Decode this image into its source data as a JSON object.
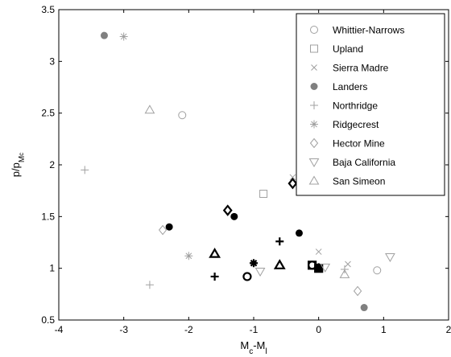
{
  "chart_data": {
    "type": "scatter",
    "xlabel": "M_c-M_l",
    "ylabel": "p/p_Mc",
    "xlim": [
      -4,
      2
    ],
    "ylim": [
      0.5,
      3.5
    ],
    "xticks": [
      -4,
      -3,
      -2,
      -1,
      0,
      1,
      2
    ],
    "yticks": [
      0.5,
      1,
      1.5,
      2,
      2.5,
      3,
      3.5
    ],
    "grid": false,
    "legend_position": "top-right",
    "series": [
      {
        "name": "Whittier-Narrows",
        "marker": "circle",
        "color": "#a0a0a0",
        "points": [
          [
            -2.1,
            2.48
          ],
          [
            -1.1,
            0.92
          ],
          [
            -0.1,
            1.03
          ],
          [
            0.9,
            0.98
          ]
        ],
        "bold": [
          false,
          true,
          true,
          false
        ]
      },
      {
        "name": "Upland",
        "marker": "square",
        "color": "#a0a0a0",
        "points": [
          [
            -0.85,
            1.72
          ],
          [
            -0.1,
            1.03
          ],
          [
            0.0,
            1.0
          ]
        ],
        "bold": [
          false,
          true,
          true
        ]
      },
      {
        "name": "Sierra Madre",
        "marker": "x",
        "color": "#a0a0a0",
        "points": [
          [
            -0.4,
            1.88
          ],
          [
            0.0,
            1.16
          ],
          [
            0.45,
            1.04
          ],
          [
            0.0,
            0.99
          ]
        ],
        "bold": [
          false,
          false,
          false,
          true
        ]
      },
      {
        "name": "Landers",
        "marker": "filled-circle",
        "color": "#808080",
        "points": [
          [
            -3.3,
            3.25
          ],
          [
            -2.3,
            1.4
          ],
          [
            -1.3,
            1.5
          ],
          [
            -0.3,
            1.34
          ],
          [
            0.0,
            1.0
          ],
          [
            0.7,
            0.62
          ]
        ],
        "bold": [
          false,
          true,
          true,
          true,
          true,
          false
        ]
      },
      {
        "name": "Northridge",
        "marker": "plus",
        "color": "#a0a0a0",
        "points": [
          [
            -3.6,
            1.95
          ],
          [
            -2.6,
            0.84
          ],
          [
            -1.6,
            0.92
          ],
          [
            -0.6,
            1.26
          ],
          [
            0.0,
            1.01
          ],
          [
            0.4,
            0.99
          ]
        ],
        "bold": [
          false,
          false,
          true,
          true,
          true,
          false
        ]
      },
      {
        "name": "Ridgecrest",
        "marker": "asterisk",
        "color": "#a0a0a0",
        "points": [
          [
            -3.0,
            3.24
          ],
          [
            -2.0,
            1.12
          ],
          [
            -1.0,
            1.05
          ],
          [
            0.0,
            1.0
          ]
        ],
        "bold": [
          false,
          false,
          true,
          true
        ]
      },
      {
        "name": "Hector Mine",
        "marker": "diamond",
        "color": "#a0a0a0",
        "points": [
          [
            -2.4,
            1.37
          ],
          [
            -1.4,
            1.56
          ],
          [
            -0.4,
            1.82
          ],
          [
            0.6,
            0.78
          ]
        ],
        "bold": [
          false,
          true,
          true,
          false
        ]
      },
      {
        "name": "Baja California",
        "marker": "triangle-down",
        "color": "#a0a0a0",
        "points": [
          [
            -0.9,
            0.97
          ],
          [
            0.1,
            1.01
          ],
          [
            1.1,
            1.11
          ]
        ],
        "bold": [
          false,
          false,
          false
        ]
      },
      {
        "name": "San Simeon",
        "marker": "triangle-up",
        "color": "#a0a0a0",
        "points": [
          [
            -2.6,
            2.53
          ],
          [
            -1.6,
            1.14
          ],
          [
            -0.6,
            1.03
          ],
          [
            0.4,
            0.94
          ]
        ],
        "bold": [
          false,
          true,
          true,
          false
        ]
      }
    ]
  }
}
